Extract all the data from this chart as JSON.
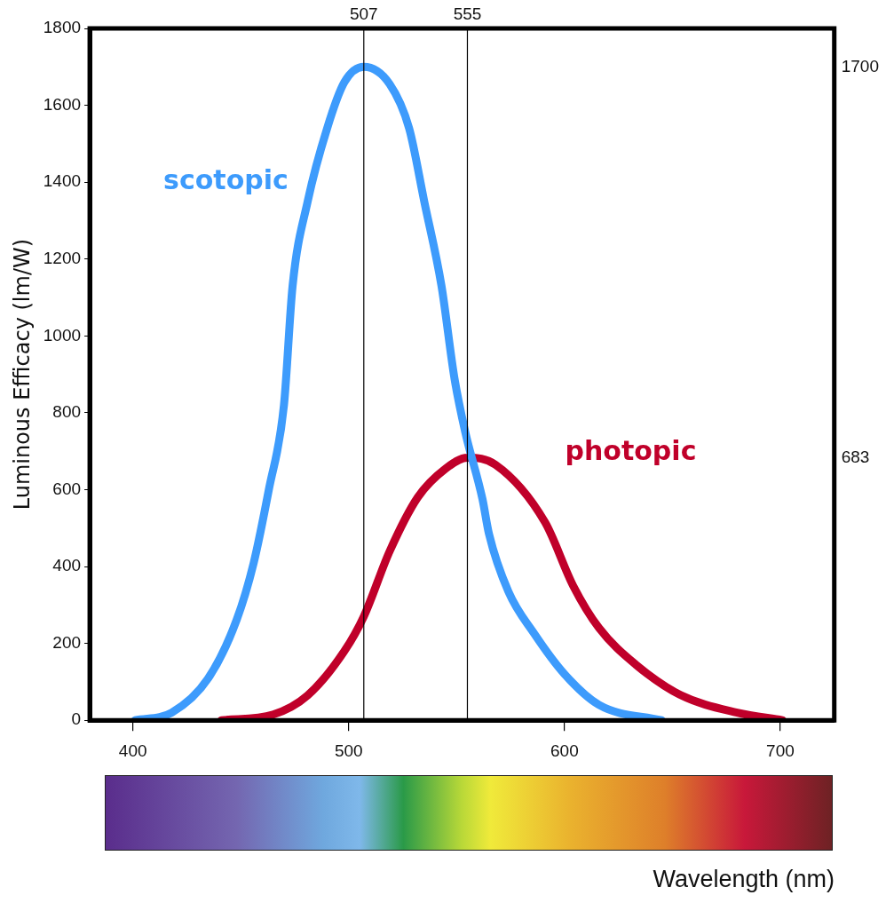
{
  "chart_data": {
    "type": "line",
    "xlabel": "Wavelength (nm)",
    "ylabel": "Luminous Efficacy (lm/W)",
    "xlim": [
      380,
      725
    ],
    "xticks": [
      400,
      500,
      600,
      700
    ],
    "ylim": [
      0,
      1800
    ],
    "yticks": [
      0,
      200,
      400,
      600,
      800,
      1000,
      1200,
      1400,
      1600,
      1800
    ],
    "y2lim": [
      0,
      1800
    ],
    "y2ticks": [
      683,
      1700
    ],
    "grid": false,
    "legend": false,
    "marker": "none",
    "line_style": "solid",
    "ref_lines": [
      {
        "axis": "x",
        "value": 507,
        "label": "507",
        "color": "#000000"
      },
      {
        "axis": "x",
        "value": 555,
        "label": "555",
        "color": "#000000"
      }
    ],
    "series": [
      {
        "name": "scotopic",
        "color": "#3d9bfc",
        "x": [
          401,
          418,
          435,
          448,
          456,
          463,
          470,
          474,
          481,
          490,
          498,
          507,
          519,
          528,
          535,
          543,
          549,
          554,
          562,
          565,
          574,
          586,
          600,
          616,
          645
        ],
        "values": [
          0,
          20,
          110,
          260,
          410,
          600,
          820,
          1130,
          1350,
          1540,
          1660,
          1700,
          1655,
          1540,
          1350,
          1130,
          890,
          750,
          575,
          485,
          335,
          225,
          120,
          40,
          0
        ]
      },
      {
        "name": "photopic",
        "color": "#c0002a",
        "x": [
          441,
          465,
          481,
          498,
          507,
          519,
          532,
          545,
          555,
          568,
          591,
          604,
          616,
          633,
          654,
          680,
          701
        ],
        "values": [
          0,
          15,
          65,
          180,
          270,
          440,
          580,
          655,
          683,
          665,
          515,
          350,
          240,
          145,
          65,
          20,
          0
        ]
      }
    ]
  }
}
